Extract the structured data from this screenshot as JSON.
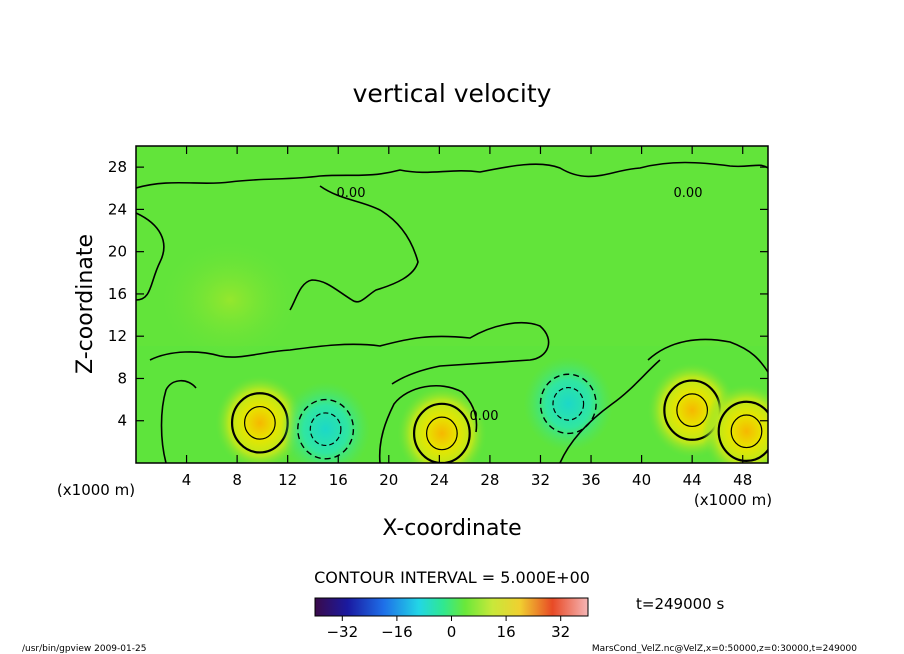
{
  "chart_data": {
    "type": "contour",
    "title": "vertical velocity",
    "xlabel": "X-coordinate",
    "ylabel": "Z-coordinate",
    "x_unit": "(x1000 m)",
    "y_unit": "(x1000 m)",
    "xlim": [
      0,
      50
    ],
    "ylim": [
      0,
      30
    ],
    "x_ticks": [
      "4",
      "8",
      "12",
      "16",
      "20",
      "24",
      "28",
      "32",
      "36",
      "40",
      "44",
      "48"
    ],
    "y_ticks": [
      "4",
      "8",
      "12",
      "16",
      "20",
      "24",
      "28"
    ],
    "contour_interval": "CONTOUR INTERVAL = 5.000E+00",
    "contour_labels": [
      "0.00",
      "0.00",
      "0.00"
    ],
    "colorbar": {
      "min": -40,
      "max": 40,
      "ticks": [
        "−32",
        "−16",
        "0",
        "16",
        "32"
      ]
    },
    "time_label": "t=249000 s",
    "footer_left": "/usr/bin/gpview   2009-01-25",
    "footer_right": "MarsCond_VelZ.nc@VelZ,x=0:50000,z=0:30000,t=249000",
    "features": [
      {
        "x": 9.8,
        "z": 3.8,
        "sign": "+"
      },
      {
        "x": 15.0,
        "z": 3.2,
        "sign": "-"
      },
      {
        "x": 24.2,
        "z": 2.8,
        "sign": "+"
      },
      {
        "x": 34.2,
        "z": 5.6,
        "sign": "-"
      },
      {
        "x": 44.0,
        "z": 5.0,
        "sign": "+"
      },
      {
        "x": 48.3,
        "z": 3.0,
        "sign": "+"
      }
    ]
  }
}
